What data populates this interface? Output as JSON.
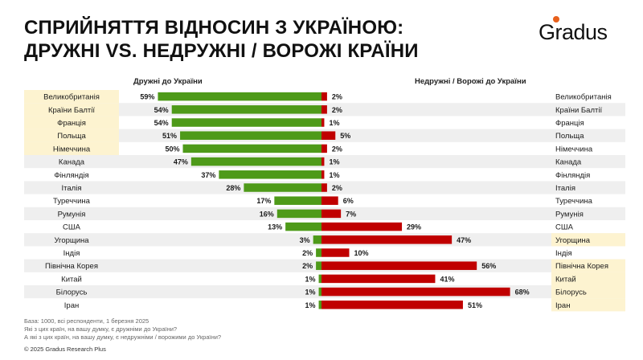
{
  "title": {
    "line1": "СПРИЙНЯТТЯ ВІДНОСИН З УКРАЇНОЮ:",
    "line2": "ДРУЖНІ VS. НЕДРУЖНІ / ВОРОЖІ КРАЇНИ"
  },
  "logo": {
    "text": "Gradus",
    "dot_color": "#e8601c"
  },
  "chart_data": {
    "type": "bar",
    "orientation": "horizontal-diverging",
    "left_series_title": "Дружні до України",
    "right_series_title": "Недружні / Ворожі до України",
    "categories": [
      "Великобританія",
      "Країни Балтії",
      "Франція",
      "Польща",
      "Німеччина",
      "Канада",
      "Фінляндія",
      "Італія",
      "Туреччина",
      "Румунія",
      "США",
      "Угорщина",
      "Індія",
      "Північна Корея",
      "Китай",
      "Білорусь",
      "Іран"
    ],
    "friendly": [
      59,
      54,
      54,
      51,
      50,
      47,
      37,
      28,
      17,
      16,
      13,
      3,
      2,
      2,
      1,
      1,
      1
    ],
    "unfriendly": [
      2,
      2,
      1,
      5,
      2,
      1,
      1,
      2,
      6,
      7,
      29,
      47,
      10,
      56,
      41,
      68,
      51
    ],
    "friendly_labels": [
      "59%",
      "54%",
      "54%",
      "51%",
      "50%",
      "47%",
      "37%",
      "28%",
      "17%",
      "16%",
      "13%",
      "3%",
      "2%",
      "2%",
      "1%",
      "1%",
      "1%"
    ],
    "unfriendly_labels": [
      "2%",
      "2%",
      "1%",
      "5%",
      "2%",
      "1%",
      "1%",
      "2%",
      "6%",
      "7%",
      "29%",
      "47%",
      "10%",
      "56%",
      "41%",
      "68%",
      "51%"
    ],
    "highlight_left": [
      true,
      true,
      true,
      true,
      true,
      false,
      false,
      false,
      false,
      false,
      false,
      false,
      false,
      false,
      false,
      false,
      false
    ],
    "highlight_right": [
      false,
      false,
      false,
      false,
      false,
      false,
      false,
      false,
      false,
      false,
      false,
      true,
      false,
      true,
      true,
      true,
      true
    ],
    "colors": {
      "friendly": "#4e9a19",
      "unfriendly": "#c00000",
      "highlight": "#fdf3d0",
      "stripe": "#efefef"
    }
  },
  "footer": {
    "line1": "База: 1000, всі респонденти, 1 березня 2025",
    "line2": "Які з цих країн, на вашу думку, є дружніми до України?",
    "line3": "А які з цих країн, на вашу думку, є недружніми / ворожими до України?",
    "copyright": "© 2025 Gradus Research Plus"
  }
}
